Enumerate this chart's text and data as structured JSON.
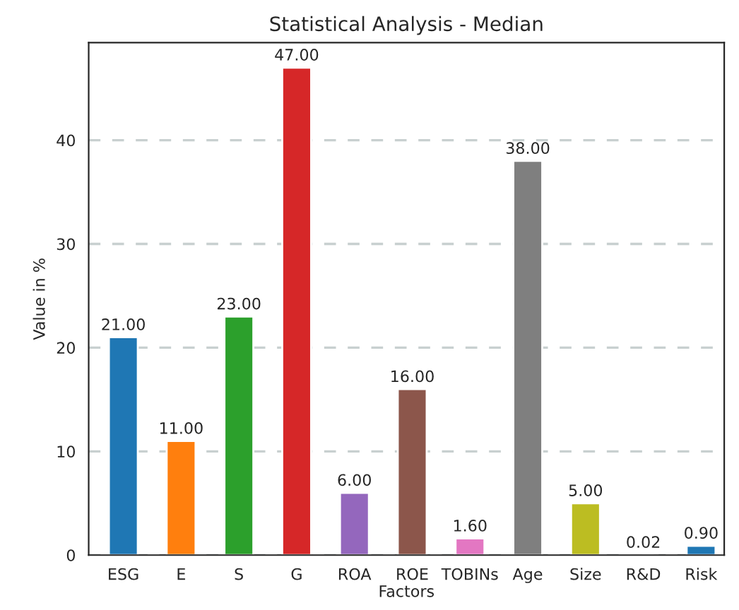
{
  "chart_data": {
    "type": "bar",
    "title": "Statistical Analysis - Median",
    "xlabel": "Factors",
    "ylabel": "Value in %",
    "categories": [
      "ESG",
      "E",
      "S",
      "G",
      "ROA",
      "ROE",
      "TOBINs",
      "Age",
      "Size",
      "R&D",
      "Risk"
    ],
    "values": [
      21,
      11,
      23,
      47,
      6,
      16,
      1.6,
      38,
      5,
      0.02,
      0.9
    ],
    "value_labels": [
      "21.00",
      "11.00",
      "23.00",
      "47.00",
      "6.00",
      "16.00",
      "1.60",
      "38.00",
      "5.00",
      "0.02",
      "0.90"
    ],
    "colors": [
      "#1f77b4",
      "#ff7f0e",
      "#2ca02c",
      "#d62728",
      "#9467bd",
      "#8c564b",
      "#e377c2",
      "#7f7f7f",
      "#bcbd22",
      "#17becf",
      "#1f77b4"
    ],
    "ylim": [
      0,
      49.4
    ],
    "yticks": [
      0,
      10,
      20,
      30,
      40
    ],
    "grid": "y",
    "line_style": "dashed"
  }
}
